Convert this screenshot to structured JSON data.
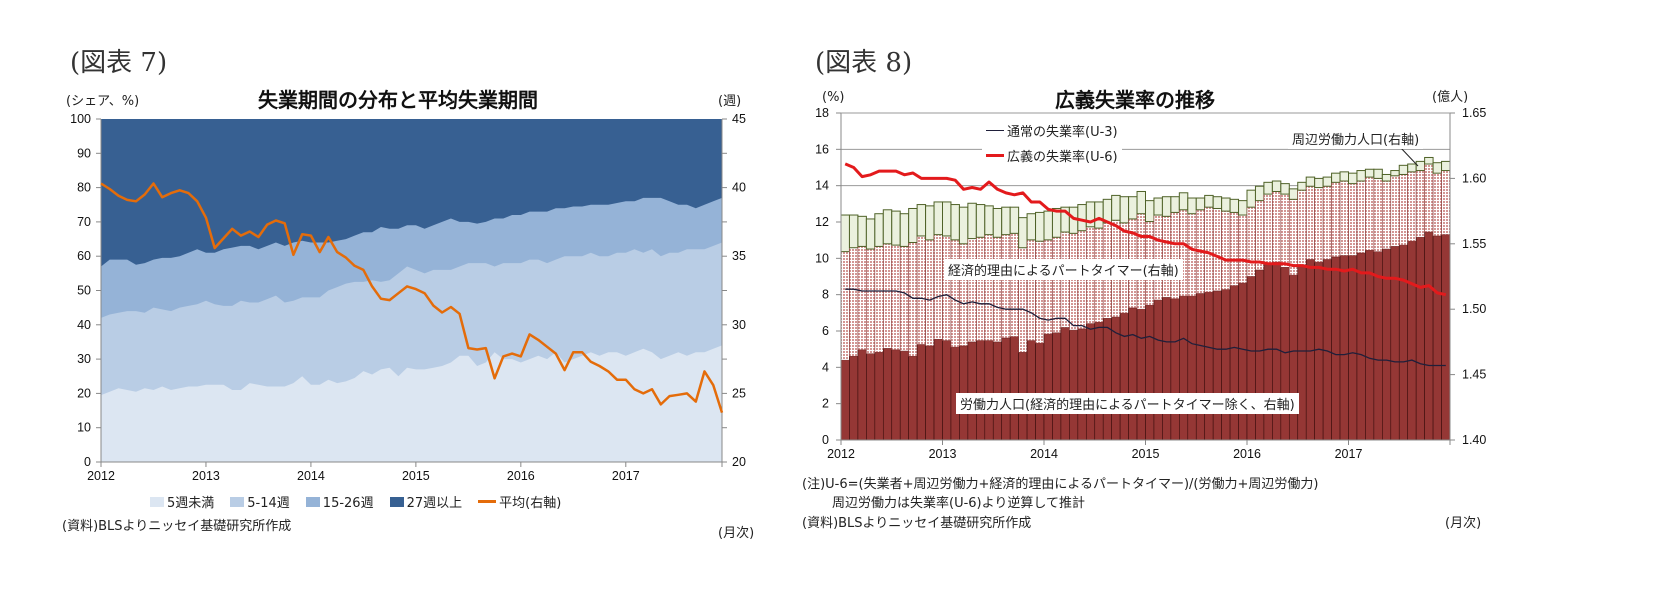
{
  "figures": [
    {
      "figure_label": "(図表 7)",
      "title": "失業期間の分布と平均失業期間",
      "left_unit": "(シェア、%)",
      "right_unit": "(週)",
      "x_unit": "(月次)",
      "source": "(資料)BLSよりニッセイ基礎研究所作成",
      "legend": [
        {
          "label": "5週未満",
          "color": "#dce6f2",
          "kind": "area"
        },
        {
          "label": "5-14週",
          "color": "#b9cde5",
          "kind": "area"
        },
        {
          "label": "15-26週",
          "color": "#95b3d7",
          "kind": "area"
        },
        {
          "label": "27週以上",
          "color": "#376092",
          "kind": "area"
        },
        {
          "label": "平均(右軸)",
          "color": "#e46c0a",
          "kind": "line"
        }
      ]
    },
    {
      "figure_label": "(図表 8)",
      "title": "広義失業率の推移",
      "left_unit": "(%)",
      "right_unit": "(億人)",
      "x_unit": "(月次)",
      "note_lines": [
        "(注)U-6=(失業者+周辺労働力+経済的理由によるパートタイマー)/(労働力+周辺労働力)",
        "周辺労働力は失業率(U-6)より逆算して推計"
      ],
      "source": "(資料)BLSよりニッセイ基礎研究所作成",
      "legend": [
        {
          "label": "通常の失業率(U-3)",
          "color": "#1f1f3a",
          "kind": "line"
        },
        {
          "label": "広義の失業率(U-6)",
          "color": "#e31a1c",
          "kind": "line"
        }
      ],
      "callouts": {
        "marginal": "周辺労働力人口(右軸)",
        "parttime": "経済的理由によるパートタイマー(右軸)",
        "labor": "労働力人口(経済的理由によるパートタイマー除く、右軸)"
      },
      "colors": {
        "labor": "#953735",
        "parttime": "#e6b9b8",
        "marginal": "#ebf1de",
        "marginal_border": "#4f6228"
      }
    }
  ],
  "chart_data": [
    {
      "type": "area",
      "title": "失業期間の分布と平均失業期間",
      "xlabel": "(月次)",
      "ylabel": "(シェア、%)",
      "y2label": "(週)",
      "x_start": "2012-01",
      "x_end": "2017-12",
      "x_ticks": [
        "2012",
        "2013",
        "2014",
        "2015",
        "2016",
        "2017"
      ],
      "ylim": [
        0,
        100
      ],
      "y_ticks": [
        0,
        10,
        20,
        30,
        40,
        50,
        60,
        70,
        80,
        90,
        100
      ],
      "y2lim": [
        20,
        45
      ],
      "y2_ticks": [
        20,
        25,
        30,
        35,
        40,
        45
      ],
      "legend_position": "bottom",
      "stacked": true,
      "series": [
        {
          "name": "5週未満",
          "cumulative_top": [
            19.5,
            20.5,
            21.5,
            21,
            20.5,
            21.5,
            21,
            22,
            21,
            21.5,
            22,
            22,
            22.5,
            22.5,
            22.5,
            21,
            21,
            23,
            22.5,
            22,
            22,
            22,
            23,
            25,
            22.5,
            22.5,
            24,
            23,
            23.5,
            24.5,
            26.5,
            25.5,
            27,
            27.5,
            25,
            27.5,
            27,
            27,
            27.5,
            28,
            29,
            31,
            31,
            28,
            29,
            32,
            30,
            30,
            29,
            30,
            31,
            30,
            32,
            29,
            30,
            31,
            32,
            31,
            32,
            32,
            31,
            32,
            33,
            32,
            30,
            31,
            32,
            31,
            32,
            32,
            33,
            34
          ]
        },
        {
          "name": "5-14週",
          "cumulative_top": [
            42,
            43,
            43.5,
            44,
            44,
            43.5,
            45,
            44.5,
            44,
            45,
            45.5,
            46,
            47,
            46,
            45.5,
            45.5,
            47,
            46.5,
            46.5,
            47.5,
            48.5,
            46.5,
            47,
            48,
            48,
            48,
            50,
            51,
            52,
            52.5,
            52.5,
            53,
            52.5,
            53,
            55,
            57,
            56,
            55,
            56,
            56,
            56,
            57,
            58,
            58,
            58,
            57,
            58,
            58,
            58,
            59,
            59,
            58,
            59,
            60,
            60,
            60,
            61,
            60,
            60,
            61,
            61,
            62,
            61,
            62,
            60,
            61,
            61,
            62,
            62,
            62,
            63,
            64
          ]
        },
        {
          "name": "15-26週",
          "cumulative_top": [
            57,
            59,
            59,
            59,
            57.5,
            58,
            59,
            59.5,
            59.5,
            60,
            61,
            62,
            61,
            61,
            62,
            62.5,
            63,
            63,
            62,
            63,
            64,
            63,
            64,
            64.5,
            64,
            64,
            64,
            64.5,
            65,
            66,
            67,
            67,
            68.5,
            68,
            68,
            69,
            69,
            68,
            69,
            70,
            71,
            70,
            70,
            69.5,
            70,
            71,
            71,
            72,
            72,
            73,
            73,
            73,
            74,
            74,
            74.5,
            74.5,
            75,
            75,
            75,
            75.5,
            76,
            76,
            77,
            77,
            77,
            76,
            75,
            75,
            74,
            75,
            76,
            77
          ]
        },
        {
          "name": "27週以上",
          "cumulative_top": [
            100,
            100,
            100,
            100,
            100,
            100,
            100,
            100,
            100,
            100,
            100,
            100,
            100,
            100,
            100,
            100,
            100,
            100,
            100,
            100,
            100,
            100,
            100,
            100,
            100,
            100,
            100,
            100,
            100,
            100,
            100,
            100,
            100,
            100,
            100,
            100,
            100,
            100,
            100,
            100,
            100,
            100,
            100,
            100,
            100,
            100,
            100,
            100,
            100,
            100,
            100,
            100,
            100,
            100,
            100,
            100,
            100,
            100,
            100,
            100,
            100,
            100,
            100,
            100,
            100,
            100,
            100,
            100,
            100,
            100,
            100,
            100
          ]
        },
        {
          "name": "平均(右軸)",
          "axis": "right",
          "values": [
            40.3,
            39.9,
            39.4,
            39.1,
            39.0,
            39.5,
            40.3,
            39.3,
            39.6,
            39.8,
            39.6,
            39.0,
            37.8,
            35.6,
            36.3,
            37.0,
            36.5,
            36.8,
            36.4,
            37.3,
            37.6,
            37.4,
            35.1,
            36.6,
            36.5,
            35.3,
            36.4,
            35.3,
            34.9,
            34.3,
            34.0,
            32.8,
            31.9,
            31.8,
            32.3,
            32.8,
            32.6,
            32.3,
            31.4,
            30.9,
            31.3,
            30.8,
            28.3,
            28.2,
            28.3,
            26.1,
            27.7,
            27.9,
            27.7,
            29.3,
            28.9,
            28.4,
            27.9,
            26.7,
            28.0,
            28.0,
            27.3,
            27.0,
            26.6,
            26.0,
            26.0,
            25.3,
            25.0,
            25.3,
            24.2,
            24.8,
            24.9,
            25.0,
            24.4,
            26.6,
            25.6,
            23.6
          ]
        }
      ]
    },
    {
      "type": "bar",
      "title": "広義失業率の推移",
      "xlabel": "(月次)",
      "ylabel": "(%)",
      "y2label": "(億人)",
      "x_start": "2012-01",
      "x_end": "2017-12",
      "x_ticks": [
        "2012",
        "2013",
        "2014",
        "2015",
        "2016",
        "2017"
      ],
      "ylim": [
        0,
        18
      ],
      "y_ticks": [
        0,
        2,
        4,
        6,
        8,
        10,
        12,
        14,
        16,
        18
      ],
      "y2lim": [
        1.4,
        1.65
      ],
      "y2_ticks": [
        "1.40",
        "1.45",
        "1.50",
        "1.55",
        "1.60",
        "1.65"
      ],
      "legend_position": "top-left",
      "stacked_bars_right_axis": [
        {
          "name": "労働力人口(経済的理由によるパートタイマー除く、右軸)",
          "cumulative_top": [
            1.461,
            1.464,
            1.469,
            1.466,
            1.467,
            1.47,
            1.469,
            1.468,
            1.464,
            1.473,
            1.472,
            1.477,
            1.476,
            1.471,
            1.472,
            1.475,
            1.476,
            1.476,
            1.475,
            1.478,
            1.479,
            1.467,
            1.476,
            1.474,
            1.481,
            1.482,
            1.486,
            1.484,
            1.485,
            1.489,
            1.49,
            1.493,
            1.494,
            1.497,
            1.501,
            1.5,
            1.503,
            1.507,
            1.509,
            1.508,
            1.51,
            1.51,
            1.512,
            1.513,
            1.514,
            1.515,
            1.518,
            1.52,
            1.525,
            1.53,
            1.534,
            1.536,
            1.532,
            1.526,
            1.534,
            1.538,
            1.536,
            1.538,
            1.54,
            1.541,
            1.541,
            1.543,
            1.545,
            1.544,
            1.546,
            1.548,
            1.549,
            1.552,
            1.555,
            1.559,
            1.556,
            1.557
          ]
        },
        {
          "name": "経済的理由によるパートタイマー(右軸)",
          "cumulative_top": [
            1.544,
            1.547,
            1.548,
            1.546,
            1.548,
            1.55,
            1.549,
            1.548,
            1.551,
            1.556,
            1.553,
            1.557,
            1.556,
            1.553,
            1.55,
            1.554,
            1.555,
            1.557,
            1.555,
            1.557,
            1.558,
            1.547,
            1.553,
            1.552,
            1.553,
            1.555,
            1.559,
            1.558,
            1.56,
            1.563,
            1.562,
            1.566,
            1.568,
            1.566,
            1.569,
            1.573,
            1.567,
            1.572,
            1.571,
            1.574,
            1.576,
            1.573,
            1.576,
            1.578,
            1.577,
            1.575,
            1.574,
            1.572,
            1.578,
            1.583,
            1.588,
            1.59,
            1.588,
            1.584,
            1.591,
            1.594,
            1.593,
            1.594,
            1.597,
            1.598,
            1.596,
            1.598,
            1.601,
            1.6,
            1.598,
            1.602,
            1.603,
            1.605,
            1.606,
            1.611,
            1.604,
            1.606
          ]
        },
        {
          "name": "周辺労働力人口(右軸)",
          "cumulative_top": [
            1.572,
            1.572,
            1.571,
            1.569,
            1.573,
            1.576,
            1.575,
            1.573,
            1.577,
            1.58,
            1.579,
            1.582,
            1.582,
            1.58,
            1.578,
            1.581,
            1.58,
            1.579,
            1.577,
            1.578,
            1.578,
            1.57,
            1.573,
            1.574,
            1.575,
            1.577,
            1.578,
            1.578,
            1.58,
            1.582,
            1.582,
            1.584,
            1.587,
            1.586,
            1.586,
            1.59,
            1.583,
            1.585,
            1.586,
            1.586,
            1.589,
            1.585,
            1.585,
            1.587,
            1.586,
            1.585,
            1.584,
            1.583,
            1.591,
            1.594,
            1.597,
            1.598,
            1.596,
            1.592,
            1.597,
            1.601,
            1.6,
            1.601,
            1.604,
            1.605,
            1.604,
            1.606,
            1.607,
            1.607,
            1.603,
            1.606,
            1.61,
            1.611,
            1.613,
            1.616,
            1.612,
            1.613
          ]
        }
      ],
      "series": [
        {
          "name": "通常の失業率(U-3)",
          "axis": "left",
          "values": [
            8.3,
            8.3,
            8.2,
            8.2,
            8.2,
            8.2,
            8.2,
            8.1,
            7.8,
            7.8,
            7.7,
            7.9,
            8.0,
            7.7,
            7.5,
            7.6,
            7.5,
            7.5,
            7.3,
            7.2,
            7.2,
            7.2,
            7.0,
            6.7,
            6.6,
            6.7,
            6.7,
            6.3,
            6.3,
            6.1,
            6.2,
            6.2,
            5.9,
            5.7,
            5.8,
            5.6,
            5.7,
            5.5,
            5.4,
            5.4,
            5.6,
            5.3,
            5.2,
            5.1,
            5.0,
            5.0,
            5.1,
            5.0,
            4.9,
            4.9,
            5.0,
            5.0,
            4.8,
            4.9,
            4.9,
            4.9,
            5.0,
            4.9,
            4.7,
            4.7,
            4.8,
            4.7,
            4.5,
            4.4,
            4.4,
            4.3,
            4.3,
            4.4,
            4.2,
            4.1,
            4.1,
            4.1
          ]
        },
        {
          "name": "広義の失業率(U-6)",
          "axis": "left",
          "values": [
            15.2,
            15.0,
            14.5,
            14.6,
            14.8,
            14.8,
            14.8,
            14.6,
            14.7,
            14.4,
            14.4,
            14.4,
            14.4,
            14.3,
            13.8,
            13.9,
            13.8,
            14.2,
            13.8,
            13.6,
            13.5,
            13.6,
            13.1,
            13.1,
            12.7,
            12.6,
            12.6,
            12.2,
            12.1,
            12.0,
            12.2,
            12.0,
            11.8,
            11.5,
            11.4,
            11.2,
            11.2,
            11.0,
            10.9,
            10.8,
            10.8,
            10.5,
            10.4,
            10.3,
            10.1,
            9.9,
            9.9,
            9.9,
            9.8,
            9.8,
            9.7,
            9.7,
            9.7,
            9.6,
            9.6,
            9.5,
            9.5,
            9.4,
            9.4,
            9.3,
            9.4,
            9.2,
            9.2,
            9.0,
            8.9,
            8.9,
            8.8,
            8.6,
            8.4,
            8.5,
            8.1,
            8.0
          ]
        }
      ]
    }
  ]
}
